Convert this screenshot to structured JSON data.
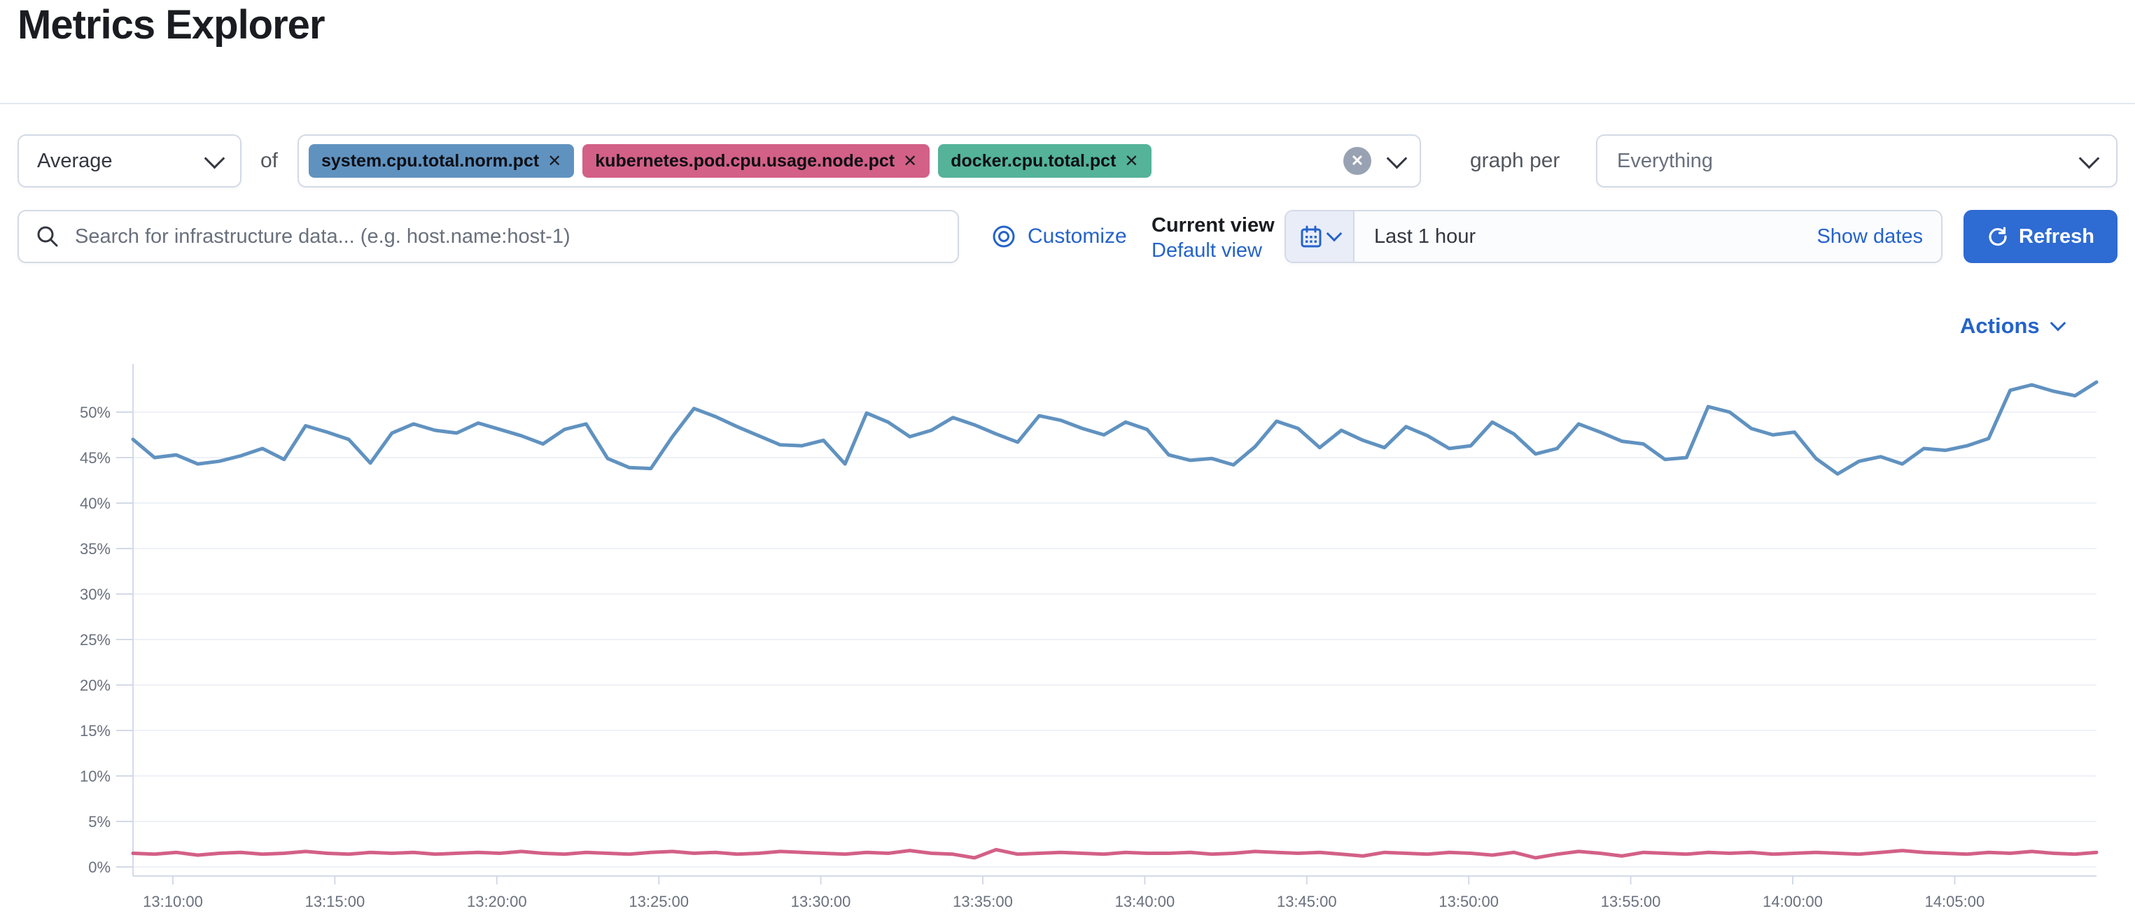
{
  "page": {
    "title": "Metrics Explorer"
  },
  "toolbar": {
    "aggregation": {
      "value": "Average"
    },
    "of_label": "of",
    "metrics": [
      {
        "label": "system.cpu.total.norm.pct",
        "color": "#6092C0"
      },
      {
        "label": "kubernetes.pod.cpu.usage.node.pct",
        "color": "#D36086"
      },
      {
        "label": "docker.cpu.total.pct",
        "color": "#54B399"
      }
    ],
    "graph_per_label": "graph per",
    "group_by": {
      "value": "Everything"
    }
  },
  "search": {
    "placeholder": "Search for infrastructure data... (e.g. host.name:host-1)"
  },
  "view_controls": {
    "customize_label": "Customize",
    "current_view_label": "Current view",
    "default_view_label": "Default view"
  },
  "time_picker": {
    "value": "Last 1 hour",
    "show_dates_label": "Show dates",
    "refresh_label": "Refresh"
  },
  "actions_label": "Actions",
  "icons": {
    "close": "✕"
  },
  "colors": {
    "link": "#2563C9",
    "primary_button": "#2E6BD2",
    "axis_text": "#69707D",
    "grid": "#eef1f6",
    "axis_line": "#d3dae6"
  },
  "chart_data": {
    "type": "line",
    "title": "",
    "xlabel": "",
    "ylabel": "",
    "ylim": [
      0,
      55
    ],
    "grid": true,
    "legend": false,
    "y_tick_values": [
      0,
      5,
      10,
      15,
      20,
      25,
      30,
      35,
      40,
      45,
      50
    ],
    "y_tick_suffix": "%",
    "x_tick_labels": [
      "13:10:00",
      "13:15:00",
      "13:20:00",
      "13:25:00",
      "13:30:00",
      "13:35:00",
      "13:40:00",
      "13:45:00",
      "13:50:00",
      "13:55:00",
      "14:00:00",
      "14:05:00"
    ],
    "series": [
      {
        "name": "system.cpu.total.norm.pct (avg)",
        "color": "#6092C0",
        "values": [
          47.0,
          45.0,
          45.3,
          44.3,
          44.6,
          45.2,
          46.0,
          44.8,
          48.5,
          47.8,
          47.0,
          44.4,
          47.7,
          48.7,
          48.0,
          47.7,
          48.8,
          48.1,
          47.4,
          46.5,
          48.1,
          48.7,
          44.9,
          43.9,
          43.8,
          47.3,
          50.4,
          49.5,
          48.4,
          47.4,
          46.4,
          46.3,
          46.9,
          44.3,
          49.9,
          48.9,
          47.3,
          48.0,
          49.4,
          48.6,
          47.6,
          46.7,
          49.6,
          49.1,
          48.2,
          47.5,
          48.9,
          48.1,
          45.3,
          44.7,
          44.9,
          44.2,
          46.2,
          49.0,
          48.2,
          46.1,
          48.0,
          46.9,
          46.1,
          48.4,
          47.4,
          46.0,
          46.3,
          48.9,
          47.6,
          45.4,
          46.0,
          48.7,
          47.8,
          46.8,
          46.5,
          44.8,
          45.0,
          50.6,
          50.0,
          48.2,
          47.5,
          47.8,
          44.9,
          43.2,
          44.6,
          45.1,
          44.3,
          46.0,
          45.8,
          46.3,
          47.1,
          52.4,
          53.0,
          52.3,
          51.8,
          53.3
        ]
      },
      {
        "name": "kubernetes.pod.cpu.usage.node.pct (avg)",
        "color": "#D36086",
        "values": [
          1.5,
          1.4,
          1.6,
          1.3,
          1.5,
          1.6,
          1.4,
          1.5,
          1.7,
          1.5,
          1.4,
          1.6,
          1.5,
          1.6,
          1.4,
          1.5,
          1.6,
          1.5,
          1.7,
          1.5,
          1.4,
          1.6,
          1.5,
          1.4,
          1.6,
          1.7,
          1.5,
          1.6,
          1.4,
          1.5,
          1.7,
          1.6,
          1.5,
          1.4,
          1.6,
          1.5,
          1.8,
          1.5,
          1.4,
          1.0,
          1.9,
          1.4,
          1.5,
          1.6,
          1.5,
          1.4,
          1.6,
          1.5,
          1.5,
          1.6,
          1.4,
          1.5,
          1.7,
          1.6,
          1.5,
          1.6,
          1.4,
          1.2,
          1.6,
          1.5,
          1.4,
          1.6,
          1.5,
          1.3,
          1.6,
          1.0,
          1.4,
          1.7,
          1.5,
          1.2,
          1.6,
          1.5,
          1.4,
          1.6,
          1.5,
          1.6,
          1.4,
          1.5,
          1.6,
          1.5,
          1.4,
          1.6,
          1.8,
          1.6,
          1.5,
          1.4,
          1.6,
          1.5,
          1.7,
          1.5,
          1.4,
          1.6
        ]
      }
    ]
  }
}
